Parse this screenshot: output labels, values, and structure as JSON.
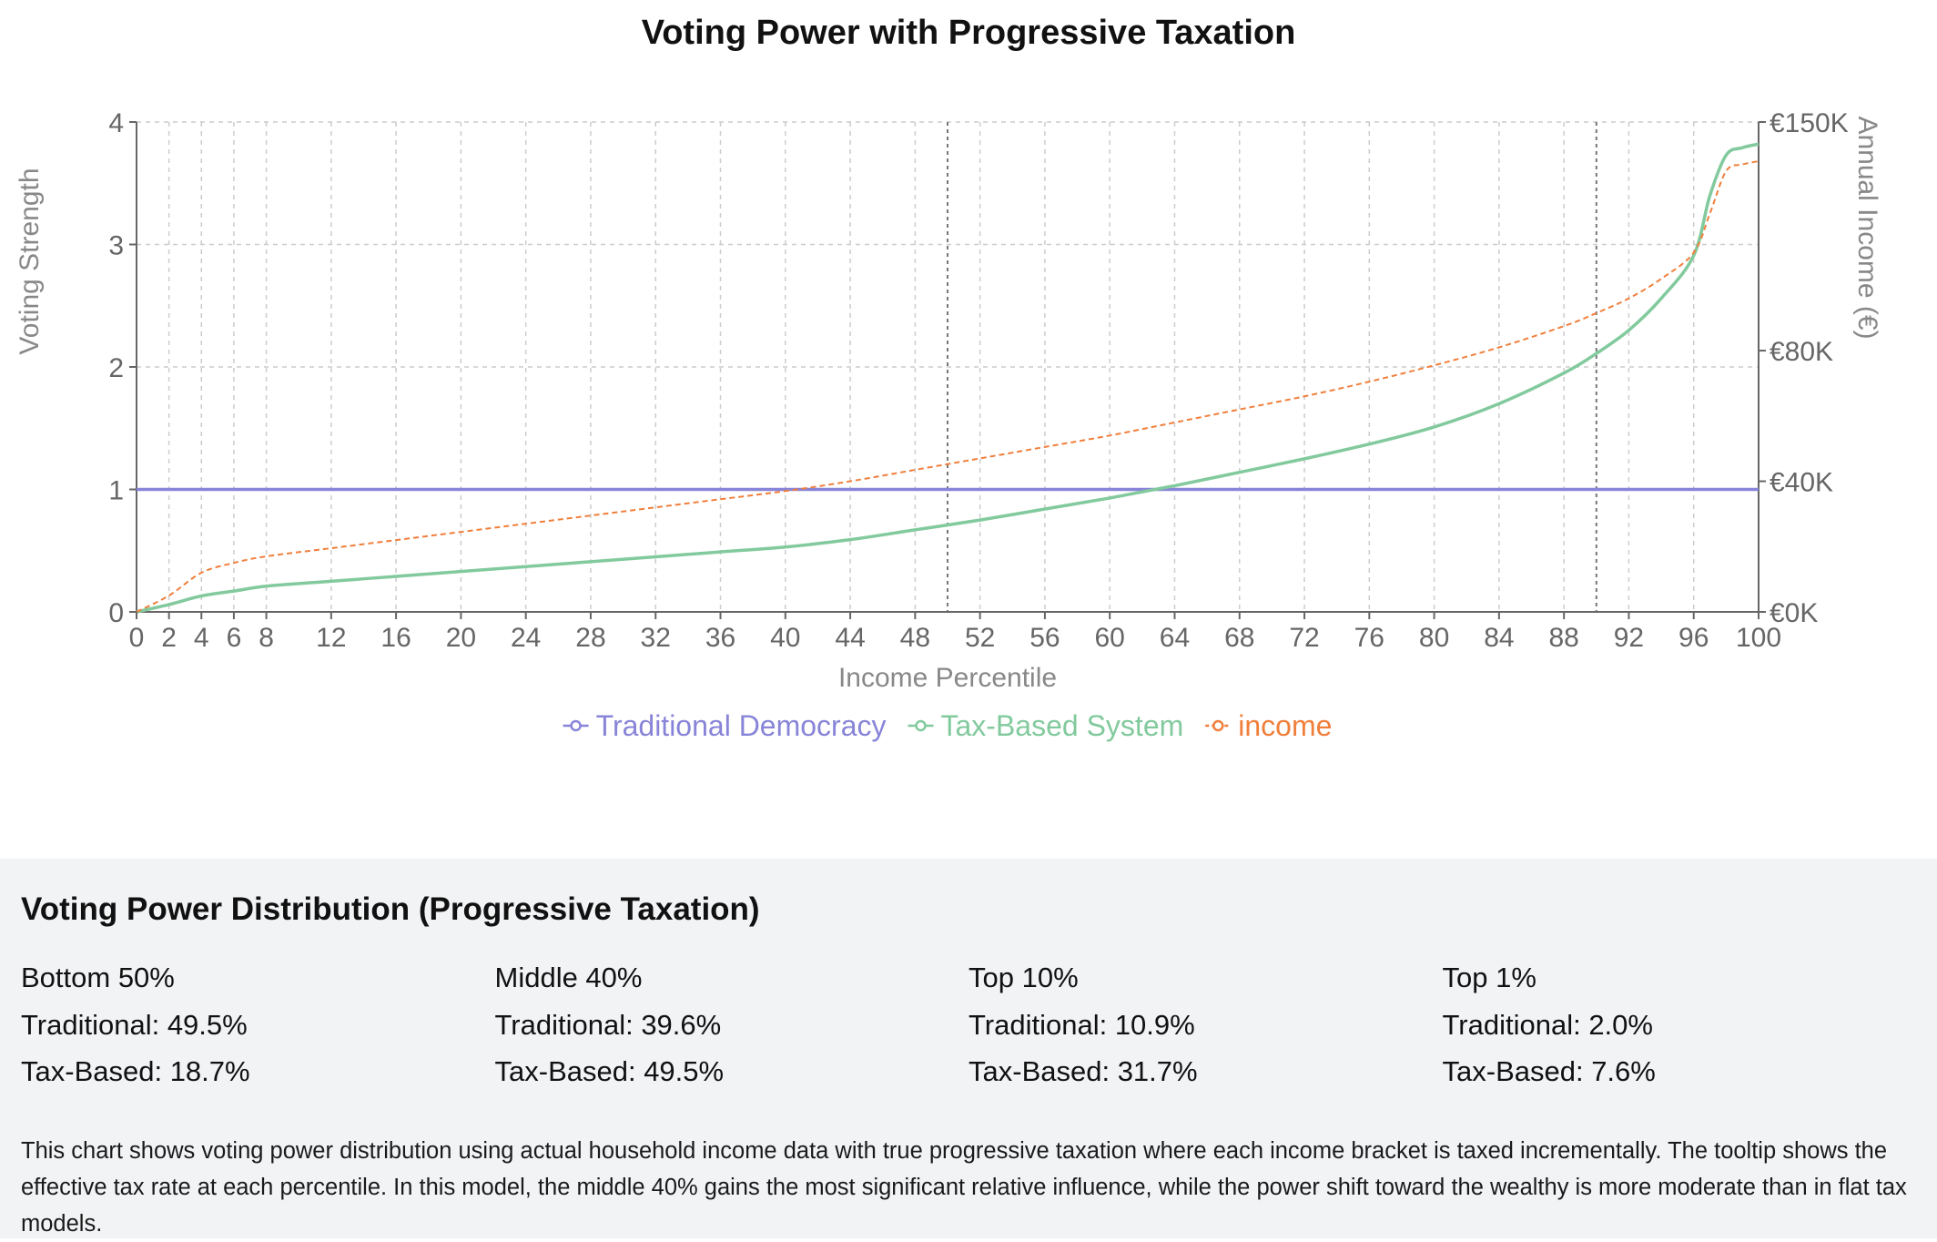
{
  "chart_data": {
    "type": "line",
    "title": "Voting Power with Progressive Taxation",
    "xlabel": "Income Percentile",
    "ylabel": "Voting Strength",
    "y2label": "Annual Income (€)",
    "xlim": [
      0,
      100
    ],
    "ylim": [
      0,
      4
    ],
    "y2lim": [
      0,
      150000
    ],
    "x_ticks": [
      0,
      2,
      4,
      6,
      8,
      12,
      16,
      20,
      24,
      28,
      32,
      36,
      40,
      44,
      48,
      52,
      56,
      60,
      64,
      68,
      72,
      76,
      80,
      84,
      88,
      92,
      96,
      100
    ],
    "y_ticks": [
      "0",
      "1",
      "2",
      "3",
      "4"
    ],
    "y2_ticks": [
      {
        "value": 0,
        "label": "€0K"
      },
      {
        "value": 40000,
        "label": "€40K"
      },
      {
        "value": 80000,
        "label": "€80K"
      },
      {
        "value": 150000,
        "label": "€150K"
      }
    ],
    "reference_lines_x": [
      50,
      90
    ],
    "grid": true,
    "legend_position": "bottom",
    "series": [
      {
        "name": "Traditional Democracy",
        "axis": "left",
        "color": "#8884d8",
        "style": "solid",
        "x": [
          0,
          100
        ],
        "values": [
          1,
          1
        ]
      },
      {
        "name": "Tax-Based System",
        "axis": "left",
        "color": "#82ca9d",
        "style": "solid",
        "x": [
          0,
          2,
          4,
          6,
          8,
          12,
          16,
          20,
          24,
          28,
          32,
          36,
          40,
          44,
          48,
          52,
          56,
          60,
          64,
          68,
          72,
          76,
          80,
          84,
          88,
          90,
          92,
          94,
          96,
          97,
          98,
          99,
          100
        ],
        "values": [
          0,
          0.06,
          0.13,
          0.17,
          0.21,
          0.25,
          0.29,
          0.33,
          0.37,
          0.41,
          0.45,
          0.49,
          0.53,
          0.59,
          0.67,
          0.75,
          0.84,
          0.93,
          1.03,
          1.14,
          1.25,
          1.37,
          1.51,
          1.7,
          1.95,
          2.11,
          2.3,
          2.56,
          2.91,
          3.4,
          3.73,
          3.79,
          3.82
        ]
      },
      {
        "name": "income",
        "axis": "right",
        "color": "#f07f3c",
        "style": "dashed",
        "x": [
          0,
          2,
          4,
          6,
          8,
          12,
          16,
          20,
          24,
          28,
          32,
          36,
          40,
          44,
          48,
          52,
          56,
          60,
          64,
          68,
          72,
          76,
          80,
          84,
          88,
          90,
          92,
          94,
          96,
          97,
          98,
          99,
          100
        ],
        "values": [
          0,
          5000,
          12000,
          15000,
          17000,
          19500,
          22000,
          24500,
          27000,
          29500,
          32000,
          34500,
          37000,
          40000,
          43500,
          47000,
          50500,
          54000,
          58000,
          62000,
          66000,
          70500,
          75500,
          81000,
          87500,
          91500,
          96000,
          102000,
          110000,
          122000,
          135000,
          137000,
          138000
        ]
      }
    ]
  },
  "summary": {
    "title": "Voting Power Distribution (Progressive Taxation)",
    "groups": [
      {
        "name": "Bottom 50%",
        "traditional": "Traditional: 49.5%",
        "tax_based": "Tax-Based: 18.7%"
      },
      {
        "name": "Middle 40%",
        "traditional": "Traditional: 39.6%",
        "tax_based": "Tax-Based: 49.5%"
      },
      {
        "name": "Top 10%",
        "traditional": "Traditional: 10.9%",
        "tax_based": "Tax-Based: 31.7%"
      },
      {
        "name": "Top 1%",
        "traditional": "Traditional: 2.0%",
        "tax_based": "Tax-Based: 7.6%"
      }
    ],
    "description": "This chart shows voting power distribution using actual household income data with true progressive taxation where each income bracket is taxed incrementally. The tooltip shows the effective tax rate at each percentile. In this model, the middle 40% gains the most significant relative influence, while the power shift toward the wealthy is more moderate than in flat tax models."
  }
}
